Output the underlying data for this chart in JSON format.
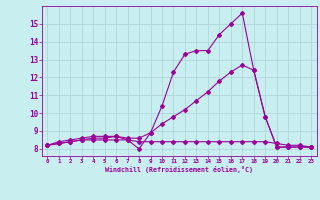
{
  "x": [
    0,
    1,
    2,
    3,
    4,
    5,
    6,
    7,
    8,
    9,
    10,
    11,
    12,
    13,
    14,
    15,
    16,
    17,
    18,
    19,
    20,
    21,
    22,
    23
  ],
  "line1": [
    8.2,
    8.4,
    8.5,
    8.6,
    8.7,
    8.7,
    8.7,
    8.5,
    8.0,
    8.9,
    10.4,
    12.3,
    13.3,
    13.5,
    13.5,
    14.4,
    15.0,
    15.6,
    12.4,
    9.8,
    8.1,
    8.1,
    8.1,
    8.1
  ],
  "line2": [
    8.2,
    8.3,
    8.4,
    8.5,
    8.6,
    8.6,
    8.7,
    8.6,
    8.6,
    8.9,
    9.4,
    9.8,
    10.2,
    10.7,
    11.2,
    11.8,
    12.3,
    12.7,
    12.4,
    9.8,
    8.1,
    8.1,
    8.1,
    8.1
  ],
  "line3": [
    8.2,
    8.3,
    8.4,
    8.5,
    8.5,
    8.5,
    8.5,
    8.5,
    8.4,
    8.4,
    8.4,
    8.4,
    8.4,
    8.4,
    8.4,
    8.4,
    8.4,
    8.4,
    8.4,
    8.4,
    8.3,
    8.2,
    8.2,
    8.1
  ],
  "line_color": "#990099",
  "bg_color": "#c8eef0",
  "grid_color": "#aad4d8",
  "xlabel": "Windchill (Refroidissement éolien,°C)",
  "ylim": [
    7.6,
    16.0
  ],
  "xlim": [
    -0.5,
    23.5
  ],
  "yticks": [
    8,
    9,
    10,
    11,
    12,
    13,
    14,
    15
  ],
  "xticks": [
    0,
    1,
    2,
    3,
    4,
    5,
    6,
    7,
    8,
    9,
    10,
    11,
    12,
    13,
    14,
    15,
    16,
    17,
    18,
    19,
    20,
    21,
    22,
    23
  ],
  "marker_size": 2.0,
  "line_width": 0.8
}
